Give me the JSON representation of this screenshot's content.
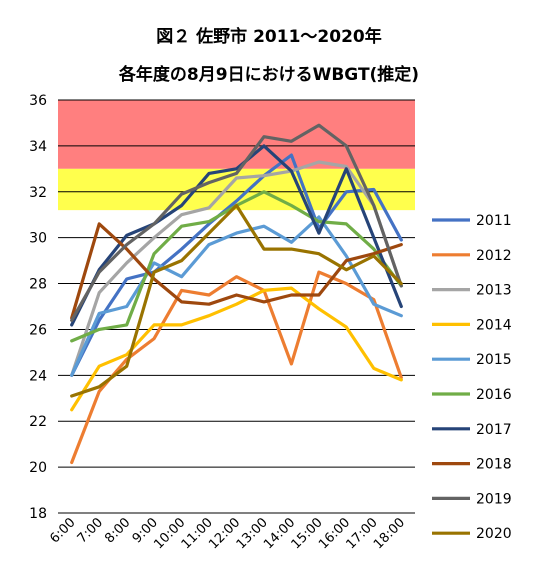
{
  "chart_data": {
    "type": "line",
    "title": "図２ 佐野市 2011～2020年",
    "subtitle": "各年度の8月9日におけるWBGT(推定)",
    "xlabel": "",
    "ylabel": "",
    "categories": [
      "6:00",
      "7:00",
      "8:00",
      "9:00",
      "10:00",
      "11:00",
      "12:00",
      "13:00",
      "14:00",
      "15:00",
      "16:00",
      "17:00",
      "18:00"
    ],
    "ylim": [
      18,
      36
    ],
    "yticks": [
      "18",
      "20",
      "22",
      "24",
      "26",
      "28",
      "30",
      "32",
      "34",
      "36"
    ],
    "grid": true,
    "legend_position": "right",
    "bands": [
      {
        "from": 33,
        "to": 36,
        "color": "#ff7f7f"
      },
      {
        "from": 31.2,
        "to": 33,
        "color": "#ffff4d"
      }
    ],
    "series": [
      {
        "name": "2011",
        "color": "#4472c4",
        "values": [
          24.0,
          26.4,
          28.2,
          28.5,
          29.5,
          30.6,
          31.6,
          32.7,
          33.6,
          30.4,
          32.0,
          32.1,
          29.9
        ]
      },
      {
        "name": "2012",
        "color": "#ed7d31",
        "values": [
          20.2,
          23.3,
          24.7,
          25.6,
          27.7,
          27.5,
          28.3,
          27.7,
          24.5,
          28.5,
          28.0,
          27.3,
          23.9
        ]
      },
      {
        "name": "2013",
        "color": "#a5a5a5",
        "values": [
          24.0,
          27.6,
          28.9,
          30.0,
          31.0,
          31.3,
          32.6,
          32.7,
          32.9,
          33.3,
          33.1,
          31.4,
          27.9
        ]
      },
      {
        "name": "2014",
        "color": "#ffc000",
        "values": [
          22.5,
          24.4,
          24.9,
          26.2,
          26.2,
          26.6,
          27.1,
          27.7,
          27.8,
          26.9,
          26.1,
          24.3,
          23.8
        ]
      },
      {
        "name": "2015",
        "color": "#5b9bd5",
        "values": [
          24.0,
          26.7,
          27.0,
          28.9,
          28.3,
          29.7,
          30.2,
          30.5,
          29.8,
          30.9,
          29.2,
          27.1,
          26.6
        ]
      },
      {
        "name": "2016",
        "color": "#70ad47",
        "values": [
          25.5,
          26.0,
          26.2,
          29.3,
          30.5,
          30.7,
          31.4,
          32.0,
          31.4,
          30.7,
          30.6,
          29.5,
          27.9
        ]
      },
      {
        "name": "2017",
        "color": "#264478",
        "values": [
          26.2,
          28.6,
          30.1,
          30.6,
          31.4,
          32.8,
          33.0,
          34.0,
          32.9,
          30.2,
          33.0,
          30.0,
          27.0
        ]
      },
      {
        "name": "2018",
        "color": "#9e480e",
        "values": [
          26.5,
          30.6,
          29.5,
          28.2,
          27.2,
          27.1,
          27.5,
          27.2,
          27.5,
          27.5,
          29.0,
          29.3,
          29.7
        ]
      },
      {
        "name": "2019",
        "color": "#636363",
        "values": [
          26.4,
          28.5,
          29.7,
          30.6,
          31.9,
          32.4,
          32.8,
          34.4,
          34.2,
          34.9,
          34.0,
          31.4,
          27.9
        ]
      },
      {
        "name": "2020",
        "color": "#997300",
        "values": [
          23.1,
          23.5,
          24.4,
          28.5,
          29.0,
          30.2,
          31.4,
          29.5,
          29.5,
          29.3,
          28.6,
          29.2,
          28.0
        ]
      }
    ]
  }
}
